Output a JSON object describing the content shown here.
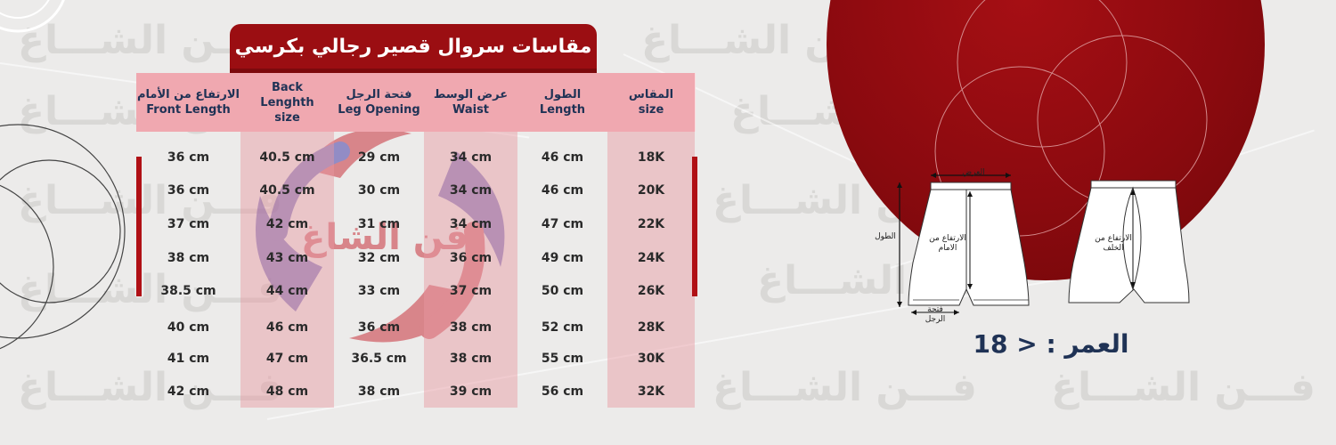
{
  "title": "مقاسات سروال قصير رجالي بكرسي",
  "watermark_text": "فـــن الشـــاغ",
  "logo_text": "فن الشاغ",
  "columns": [
    {
      "ar": "المقاس",
      "en": "size"
    },
    {
      "ar": "الطول",
      "en": "Length"
    },
    {
      "ar": "عرض الوسط",
      "en": "Waist"
    },
    {
      "ar": "فتحة الرجل",
      "en": "Leg Opening"
    },
    {
      "ar": "",
      "en": "Back Lenghth size"
    },
    {
      "ar": "الارتفاع من الأمام",
      "en": "Front Length"
    }
  ],
  "rows": [
    {
      "size": "18K",
      "length": "46 cm",
      "waist": "34 cm",
      "leg": "29 cm",
      "back": "40.5 cm",
      "front": "36 cm"
    },
    {
      "size": "20K",
      "length": "46 cm",
      "waist": "34 cm",
      "leg": "30 cm",
      "back": "40.5 cm",
      "front": "36 cm"
    },
    {
      "size": "22K",
      "length": "47 cm",
      "waist": "34 cm",
      "leg": "31 cm",
      "back": "42 cm",
      "front": "37 cm"
    },
    {
      "size": "24K",
      "length": "49 cm",
      "waist": "36 cm",
      "leg": "32 cm",
      "back": "43 cm",
      "front": "38 cm"
    },
    {
      "size": "26K",
      "length": "50 cm",
      "waist": "37 cm",
      "leg": "33 cm",
      "back": "44 cm",
      "front": "38.5 cm"
    },
    {
      "size": "28K",
      "length": "52 cm",
      "waist": "38 cm",
      "leg": "36 cm",
      "back": "46 cm",
      "front": "40 cm"
    },
    {
      "size": "30K",
      "length": "55 cm",
      "waist": "38 cm",
      "leg": "36.5 cm",
      "back": "47 cm",
      "front": "41 cm"
    },
    {
      "size": "32K",
      "length": "56 cm",
      "waist": "39 cm",
      "leg": "38 cm",
      "back": "48 cm",
      "front": "42 cm"
    }
  ],
  "diagram": {
    "width_label": "العرض",
    "length_label": "الطول",
    "front_rise_label": "الارتفاع من الامام",
    "back_rise_label": "الارتفاع من الخلف",
    "leg_label": "فتحة الرجل"
  },
  "age_label": "العمر : < 18",
  "colors": {
    "brand_red": "#9b0e12",
    "header_pink": "#f0a8b0",
    "navy": "#1f3255"
  }
}
